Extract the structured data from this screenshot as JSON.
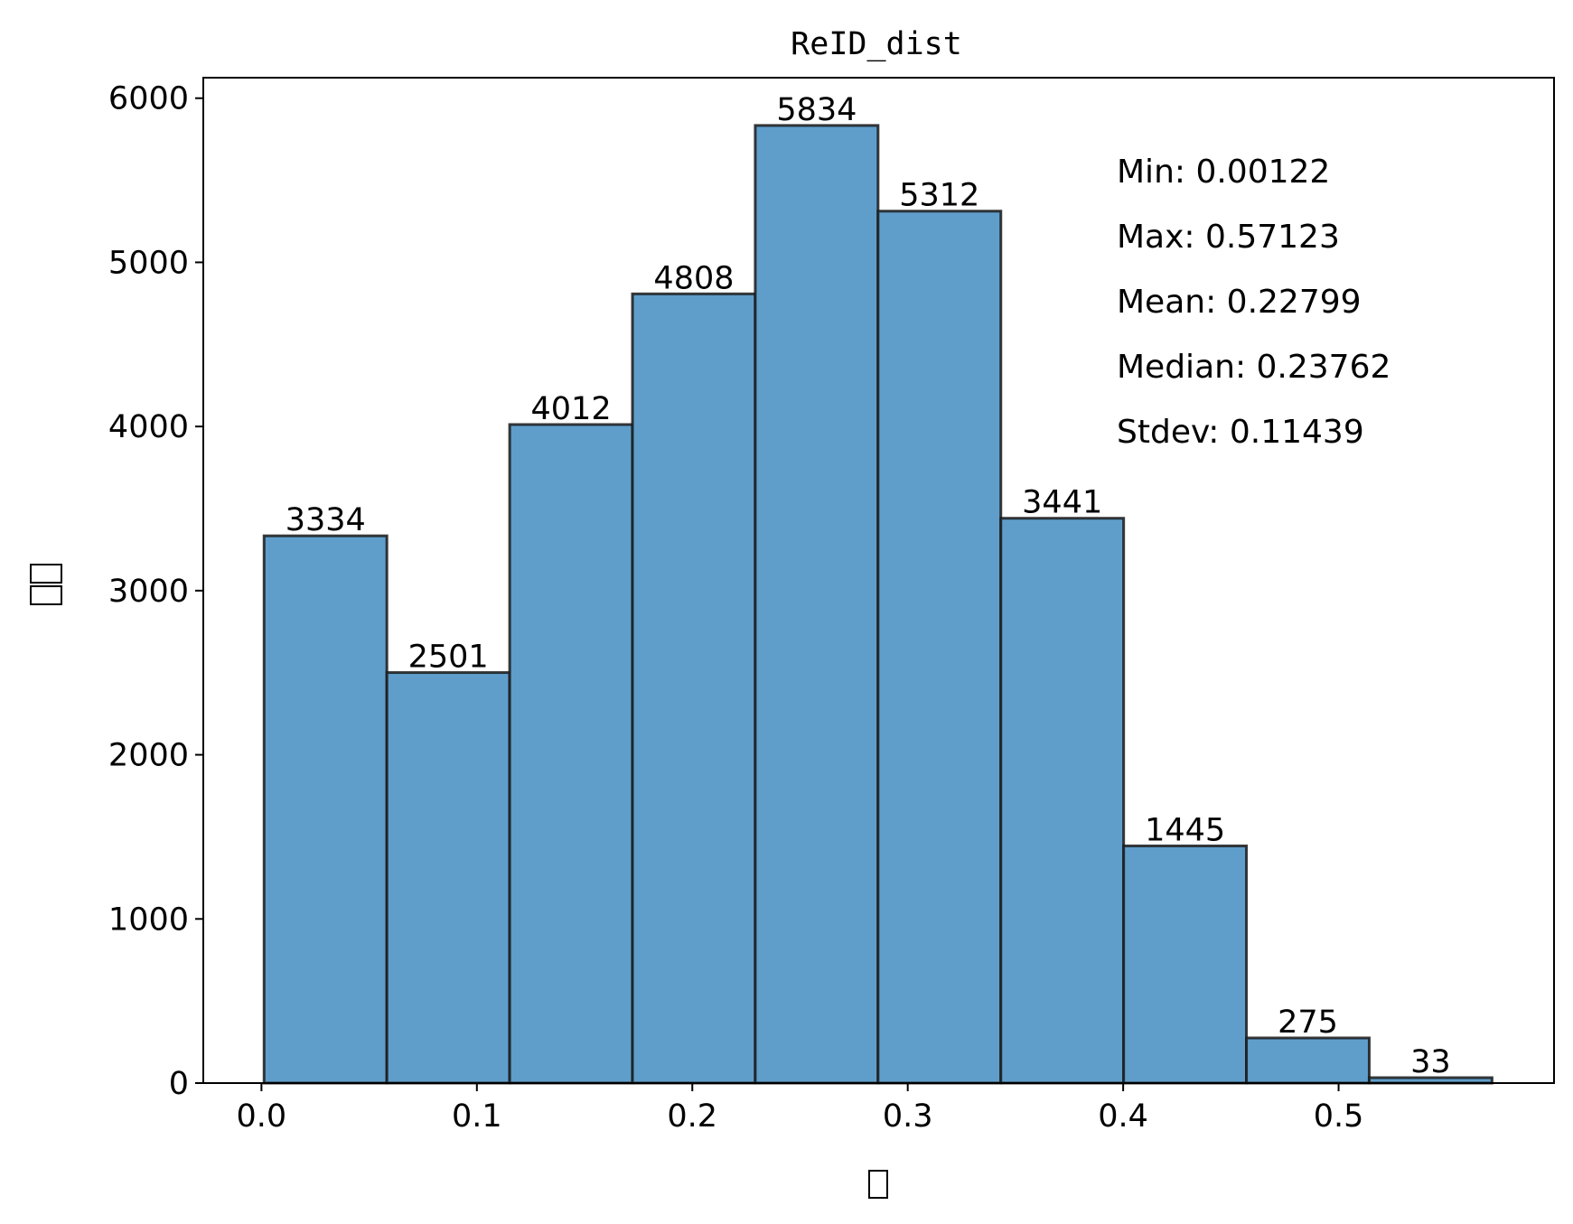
{
  "chart_data": {
    "type": "bar",
    "title": "ReID_dist",
    "xlabel_glyphs": 1,
    "ylabel_glyphs": 2,
    "bin_edges": [
      0.00122,
      0.05822,
      0.11522,
      0.17222,
      0.22922,
      0.28622,
      0.34322,
      0.40022,
      0.45722,
      0.51422,
      0.57122
    ],
    "values": [
      3334,
      2501,
      4012,
      4808,
      5834,
      5312,
      3441,
      1445,
      275,
      33
    ],
    "value_labels": [
      "3334",
      "2501",
      "4012",
      "4808",
      "5834",
      "5312",
      "3441",
      "1445",
      "275",
      "33"
    ],
    "xlim": [
      -0.027,
      0.6
    ],
    "ylim": [
      0,
      6125
    ],
    "xticks": [
      0.0,
      0.1,
      0.2,
      0.3,
      0.4,
      0.5
    ],
    "xtick_labels": [
      "0.0",
      "0.1",
      "0.2",
      "0.3",
      "0.4",
      "0.5"
    ],
    "yticks": [
      0,
      1000,
      2000,
      3000,
      4000,
      5000,
      6000
    ],
    "ytick_labels": [
      "0",
      "1000",
      "2000",
      "3000",
      "4000",
      "5000",
      "6000"
    ],
    "bar_color": "#5f9ecb",
    "edge_color": "#1a1a1a",
    "grid": false,
    "stats": [
      "Min: 0.00122",
      "Max: 0.57123",
      "Mean: 0.22799",
      "Median: 0.23762",
      "Stdev: 0.11439"
    ]
  }
}
